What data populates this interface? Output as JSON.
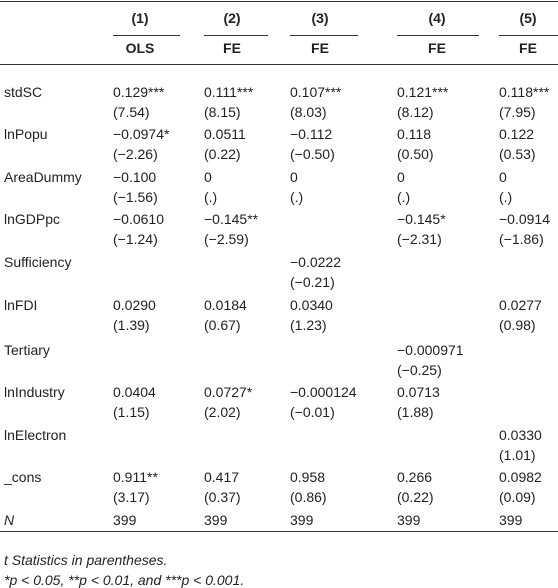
{
  "table": {
    "columns": [
      {
        "number": "(1)",
        "model": "OLS"
      },
      {
        "number": "(2)",
        "model": "FE"
      },
      {
        "number": "(3)",
        "model": "FE"
      },
      {
        "number": "(4)",
        "model": "FE"
      },
      {
        "number": "(5)",
        "model": "FE"
      }
    ],
    "rows": [
      {
        "label": "stdSC",
        "cells": [
          [
            "0.129***",
            "(7.54)"
          ],
          [
            "0.111***",
            "(8.15)"
          ],
          [
            "0.107***",
            "(8.03)"
          ],
          [
            "0.121***",
            "(8.12)"
          ],
          [
            "0.118***",
            "(7.95)"
          ]
        ]
      },
      {
        "label": "lnPopu",
        "cells": [
          [
            "−0.0974*",
            "(−2.26)"
          ],
          [
            "0.0511",
            "(0.22)"
          ],
          [
            "−0.112",
            "(−0.50)"
          ],
          [
            "0.118",
            "(0.50)"
          ],
          [
            "0.122",
            "(0.53)"
          ]
        ]
      },
      {
        "label": "AreaDummy",
        "cells": [
          [
            "−0.100",
            "(−1.56)"
          ],
          [
            "0",
            "(.)"
          ],
          [
            "0",
            "(.)"
          ],
          [
            "0",
            "(.)"
          ],
          [
            "0",
            "(.)"
          ]
        ]
      },
      {
        "label": "lnGDPpc",
        "cells": [
          [
            "−0.0610",
            "(−1.24)"
          ],
          [
            "−0.145**",
            "(−2.59)"
          ],
          null,
          [
            "−0.145*",
            "(−2.31)"
          ],
          [
            "−0.0914",
            "(−1.86)"
          ]
        ]
      },
      {
        "label": "Sufficiency",
        "cells": [
          null,
          null,
          [
            "−0.0222",
            "(−0.21)"
          ],
          null,
          null
        ]
      },
      {
        "label": "lnFDI",
        "cells": [
          [
            "0.0290",
            "(1.39)"
          ],
          [
            "0.0184",
            "(0.67)"
          ],
          [
            "0.0340",
            "(1.23)"
          ],
          null,
          [
            "0.0277",
            "(0.98)"
          ]
        ]
      },
      {
        "label": "Tertiary",
        "cells": [
          null,
          null,
          null,
          [
            "−0.000971",
            "(−0.25)"
          ],
          null
        ]
      },
      {
        "label": "lnIndustry",
        "cells": [
          [
            "0.0404",
            "(1.15)"
          ],
          [
            "0.0727*",
            "(2.02)"
          ],
          [
            "−0.000124",
            "(−0.01)"
          ],
          [
            "0.0713",
            "(1.88)"
          ],
          null
        ]
      },
      {
        "label": "lnElectron",
        "cells": [
          null,
          null,
          null,
          null,
          [
            "0.0330",
            "(1.01)"
          ]
        ]
      },
      {
        "label": "_cons",
        "cells": [
          [
            "0.911**",
            "(3.17)"
          ],
          [
            "0.417",
            "(0.37)"
          ],
          [
            "0.958",
            "(0.86)"
          ],
          [
            "0.266",
            "(0.22)"
          ],
          [
            "0.0982",
            "(0.09)"
          ]
        ]
      }
    ],
    "n_row": {
      "label": "N",
      "values": [
        "399",
        "399",
        "399",
        "399",
        "399"
      ]
    },
    "notes": [
      "t Statistics in parentheses.",
      "*p < 0.05, **p < 0.01, and ***p < 0.001."
    ]
  }
}
